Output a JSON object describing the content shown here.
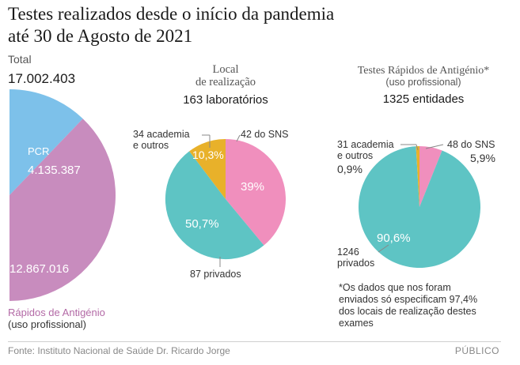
{
  "title": {
    "line1": "Testes realizados desde o início da pandemia",
    "line2": "até 30 de Agosto de 2021"
  },
  "total": {
    "label": "Total",
    "value": "17.002.403"
  },
  "colors": {
    "pcr": "#7dc1ea",
    "rapid": "#c88cbe",
    "sns": "#f08fbd",
    "academia": "#e8b12a",
    "privados": "#5ec4c4",
    "leader": "#888888"
  },
  "chart_data": [
    {
      "type": "pie",
      "title": "Total",
      "total": "17.002.403",
      "slices": [
        {
          "name": "PCR",
          "value": 4135387,
          "label_name": "PCR",
          "label_value": "4.135.387"
        },
        {
          "name": "Rápidos de Antigénio",
          "value": 12867016,
          "label_value": "12.867.016"
        }
      ],
      "legend": {
        "line1": "Rápidos de Antigénio",
        "line2": "(uso profissional)"
      }
    },
    {
      "type": "pie",
      "title_line1": "Local",
      "title_line2": "de realização",
      "subtitle": "163 laboratórios",
      "slices": [
        {
          "name": "SNS",
          "value": 39,
          "pct_label": "39%",
          "count_label": "42 do SNS"
        },
        {
          "name": "privados",
          "value": 50.7,
          "pct_label": "50,7%",
          "count_label": "87 privados"
        },
        {
          "name": "academia e outros",
          "value": 10.3,
          "pct_label": "10,3%",
          "count_label_1": "34 academia",
          "count_label_2": "e outros"
        }
      ]
    },
    {
      "type": "pie",
      "title": "Testes Rápidos de Antigénio*",
      "subtitle": "(uso profissional)",
      "count": "1325 entidades",
      "slices": [
        {
          "name": "SNS",
          "value": 5.9,
          "count_label": "48 do SNS",
          "pct_label": "5,9%"
        },
        {
          "name": "privados",
          "value": 90.6,
          "count_label_1": "1246",
          "count_label_2": "privados",
          "pct_label": "90,6%"
        },
        {
          "name": "academia e outros",
          "value": 0.9,
          "count_label_1": "31 academia",
          "count_label_2": "e outros",
          "pct_label": "0,9%"
        }
      ],
      "note": {
        "line1": "*Os dados que nos foram",
        "line2": "enviados só especificam 97,4%",
        "line3": "dos locais de realização destes",
        "line4": "exames"
      }
    }
  ],
  "footer": {
    "source": "Fonte: Instituto Nacional de Saúde Dr. Ricardo Jorge",
    "brand": "PÚBLICO"
  }
}
